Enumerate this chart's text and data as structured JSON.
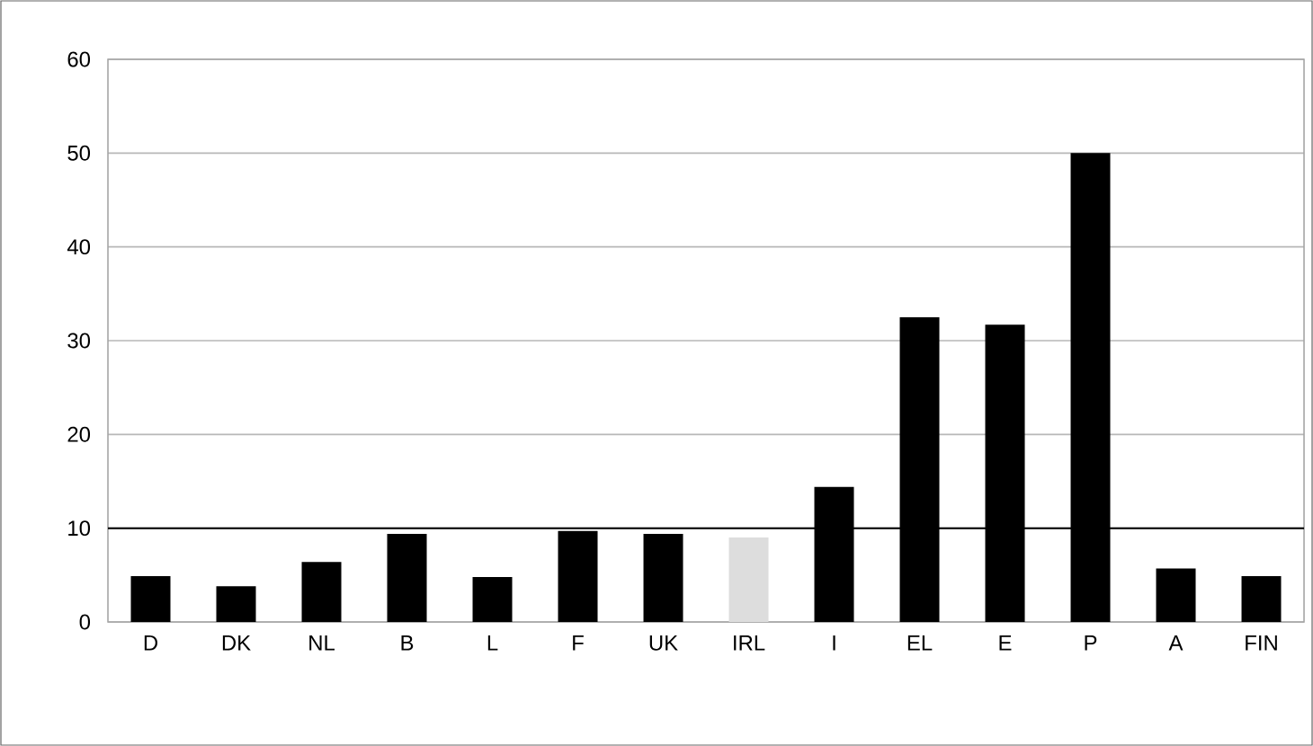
{
  "chart_data": {
    "type": "bar",
    "categories": [
      "D",
      "DK",
      "NL",
      "B",
      "L",
      "F",
      "UK",
      "IRL",
      "I",
      "EL",
      "E",
      "P",
      "A",
      "FIN"
    ],
    "values": [
      4.9,
      3.8,
      6.4,
      9.4,
      4.8,
      9.7,
      9.4,
      9.0,
      14.4,
      32.5,
      31.7,
      50,
      5.7,
      4.9
    ],
    "colors": [
      "#000000",
      "#000000",
      "#000000",
      "#000000",
      "#000000",
      "#000000",
      "#000000",
      "#dddddd",
      "#000000",
      "#000000",
      "#000000",
      "#000000",
      "#000000",
      "#000000"
    ],
    "ylim": [
      0,
      60
    ],
    "yticks": [
      0,
      10,
      20,
      30,
      40,
      50,
      60
    ],
    "grid": "y",
    "ref_lines": [
      {
        "axis": "y",
        "value": 10,
        "color": "#000000"
      }
    ]
  }
}
